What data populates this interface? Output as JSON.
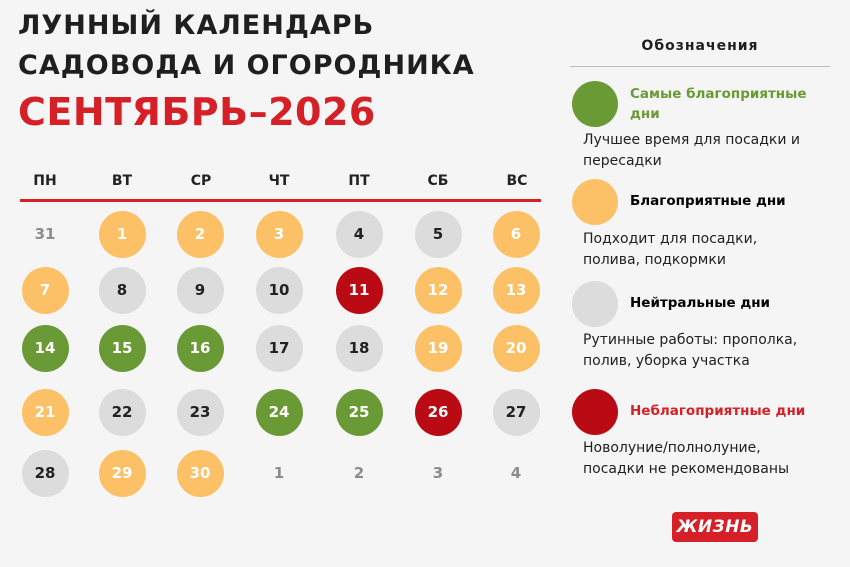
{
  "title": {
    "line1": "Лунный календарь",
    "line2": "садовода и огородника",
    "line3": "Сентябрь–2026"
  },
  "weekdays": [
    "ПН",
    "ВТ",
    "СР",
    "ЧТ",
    "ПТ",
    "СБ",
    "ВС"
  ],
  "calendar_rows": [
    [
      {
        "d": "31",
        "t": "none"
      },
      {
        "d": "1",
        "t": "fav"
      },
      {
        "d": "2",
        "t": "fav"
      },
      {
        "d": "3",
        "t": "fav"
      },
      {
        "d": "4",
        "t": "neu"
      },
      {
        "d": "5",
        "t": "neu"
      },
      {
        "d": "6",
        "t": "fav"
      }
    ],
    [
      {
        "d": "7",
        "t": "fav"
      },
      {
        "d": "8",
        "t": "neu"
      },
      {
        "d": "9",
        "t": "neu"
      },
      {
        "d": "10",
        "t": "neu"
      },
      {
        "d": "11",
        "t": "bad"
      },
      {
        "d": "12",
        "t": "fav"
      },
      {
        "d": "13",
        "t": "fav"
      }
    ],
    [
      {
        "d": "14",
        "t": "best"
      },
      {
        "d": "15",
        "t": "best"
      },
      {
        "d": "16",
        "t": "best"
      },
      {
        "d": "17",
        "t": "neu"
      },
      {
        "d": "18",
        "t": "neu"
      },
      {
        "d": "19",
        "t": "fav"
      },
      {
        "d": "20",
        "t": "fav"
      }
    ],
    [
      {
        "d": "21",
        "t": "fav"
      },
      {
        "d": "22",
        "t": "neu"
      },
      {
        "d": "23",
        "t": "neu"
      },
      {
        "d": "24",
        "t": "best"
      },
      {
        "d": "25",
        "t": "best"
      },
      {
        "d": "26",
        "t": "bad"
      },
      {
        "d": "27",
        "t": "neu"
      }
    ],
    [
      {
        "d": "28",
        "t": "neu"
      },
      {
        "d": "29",
        "t": "fav"
      },
      {
        "d": "30",
        "t": "fav"
      },
      {
        "d": "1",
        "t": "none"
      },
      {
        "d": "2",
        "t": "none"
      },
      {
        "d": "3",
        "t": "none"
      },
      {
        "d": "4",
        "t": "none"
      }
    ]
  ],
  "legend": {
    "title": "Обозначения",
    "items": [
      {
        "key": "best",
        "color": "#6a9a35",
        "head_color": "#6a9a35",
        "head": "Самые благоприятные дни",
        "desc": "Лучшее время для посадки и пересадки"
      },
      {
        "key": "fav",
        "color": "#fcc166",
        "head_color": "#1f1f1f",
        "head": "Благоприятные дни",
        "desc": "Подходит для посадки, полива, подкормки"
      },
      {
        "key": "neu",
        "color": "#dcdcdc",
        "head_color": "#1f1f1f",
        "head": "Нейтральные дни",
        "desc": "Рутинные работы: прополка, полив, уборка участка"
      },
      {
        "key": "bad",
        "color": "#ba0a13",
        "head_color": "#d62027",
        "head": "Неблагоприятные дни",
        "desc": "Новолуние/полнолуние, посадки не рекомендованы"
      }
    ]
  },
  "logo_text": "ЖИЗНЬ",
  "colors": {
    "accent": "#d62027",
    "background": "#f5f5f5"
  }
}
